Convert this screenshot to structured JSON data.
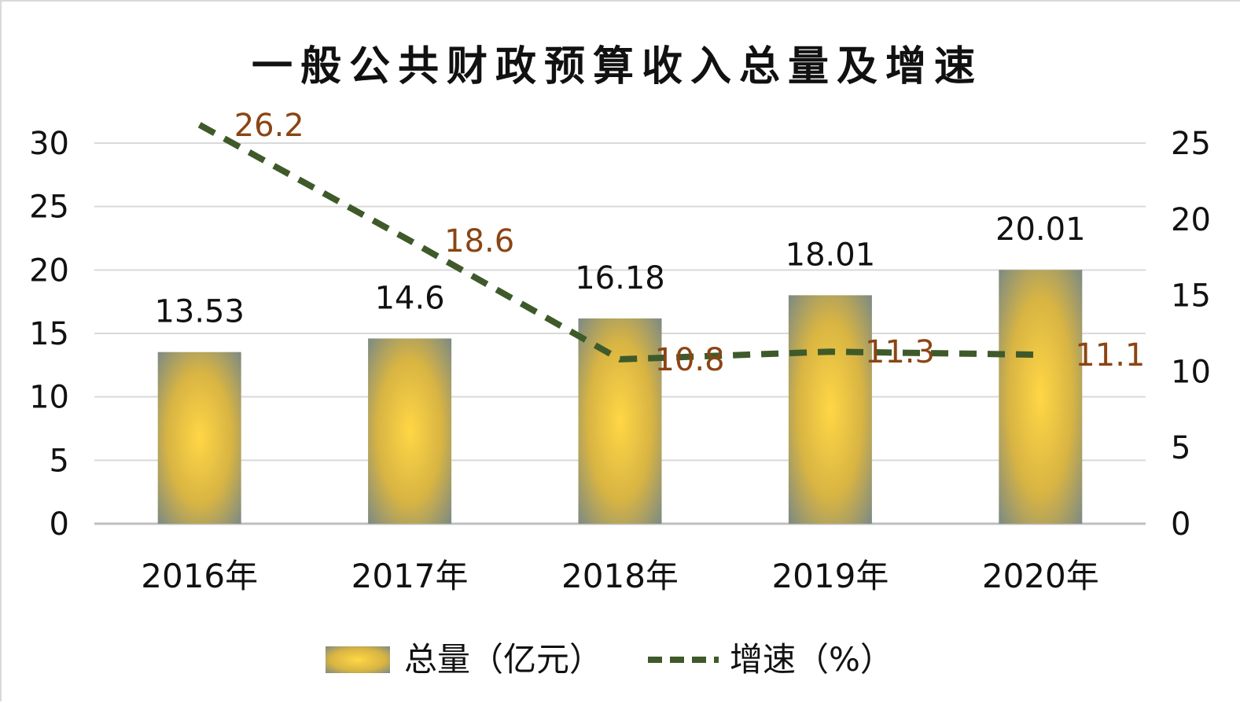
{
  "chart_data": {
    "type": "bar",
    "title": "一般公共财政预算收入总量及增速",
    "categories": [
      "2016年",
      "2017年",
      "2018年",
      "2019年",
      "2020年"
    ],
    "series": [
      {
        "name": "总量（亿元）",
        "type": "bar",
        "axis": "left",
        "values": [
          13.53,
          14.6,
          16.18,
          18.01,
          20.01
        ],
        "value_labels": [
          "13.53",
          "14.6",
          "16.18",
          "18.01",
          "20.01"
        ],
        "color": "#f5c842"
      },
      {
        "name": "增速（%）",
        "type": "line",
        "style": "dashed",
        "axis": "right",
        "values": [
          26.2,
          18.6,
          10.8,
          11.3,
          11.1
        ],
        "value_labels": [
          "26.2",
          "18.6",
          "10.8",
          "11.3",
          "11.1"
        ],
        "color": "#3f5a2a",
        "label_color": "#8b4513"
      }
    ],
    "y_left": {
      "ylim": [
        0,
        30
      ],
      "ticks": [
        "0",
        "5",
        "10",
        "15",
        "20",
        "25",
        "30"
      ]
    },
    "y_right": {
      "ylim": [
        0,
        25
      ],
      "ticks": [
        "0",
        "5",
        "10",
        "15",
        "20",
        "25"
      ]
    },
    "grid": true,
    "legend_position": "bottom"
  }
}
